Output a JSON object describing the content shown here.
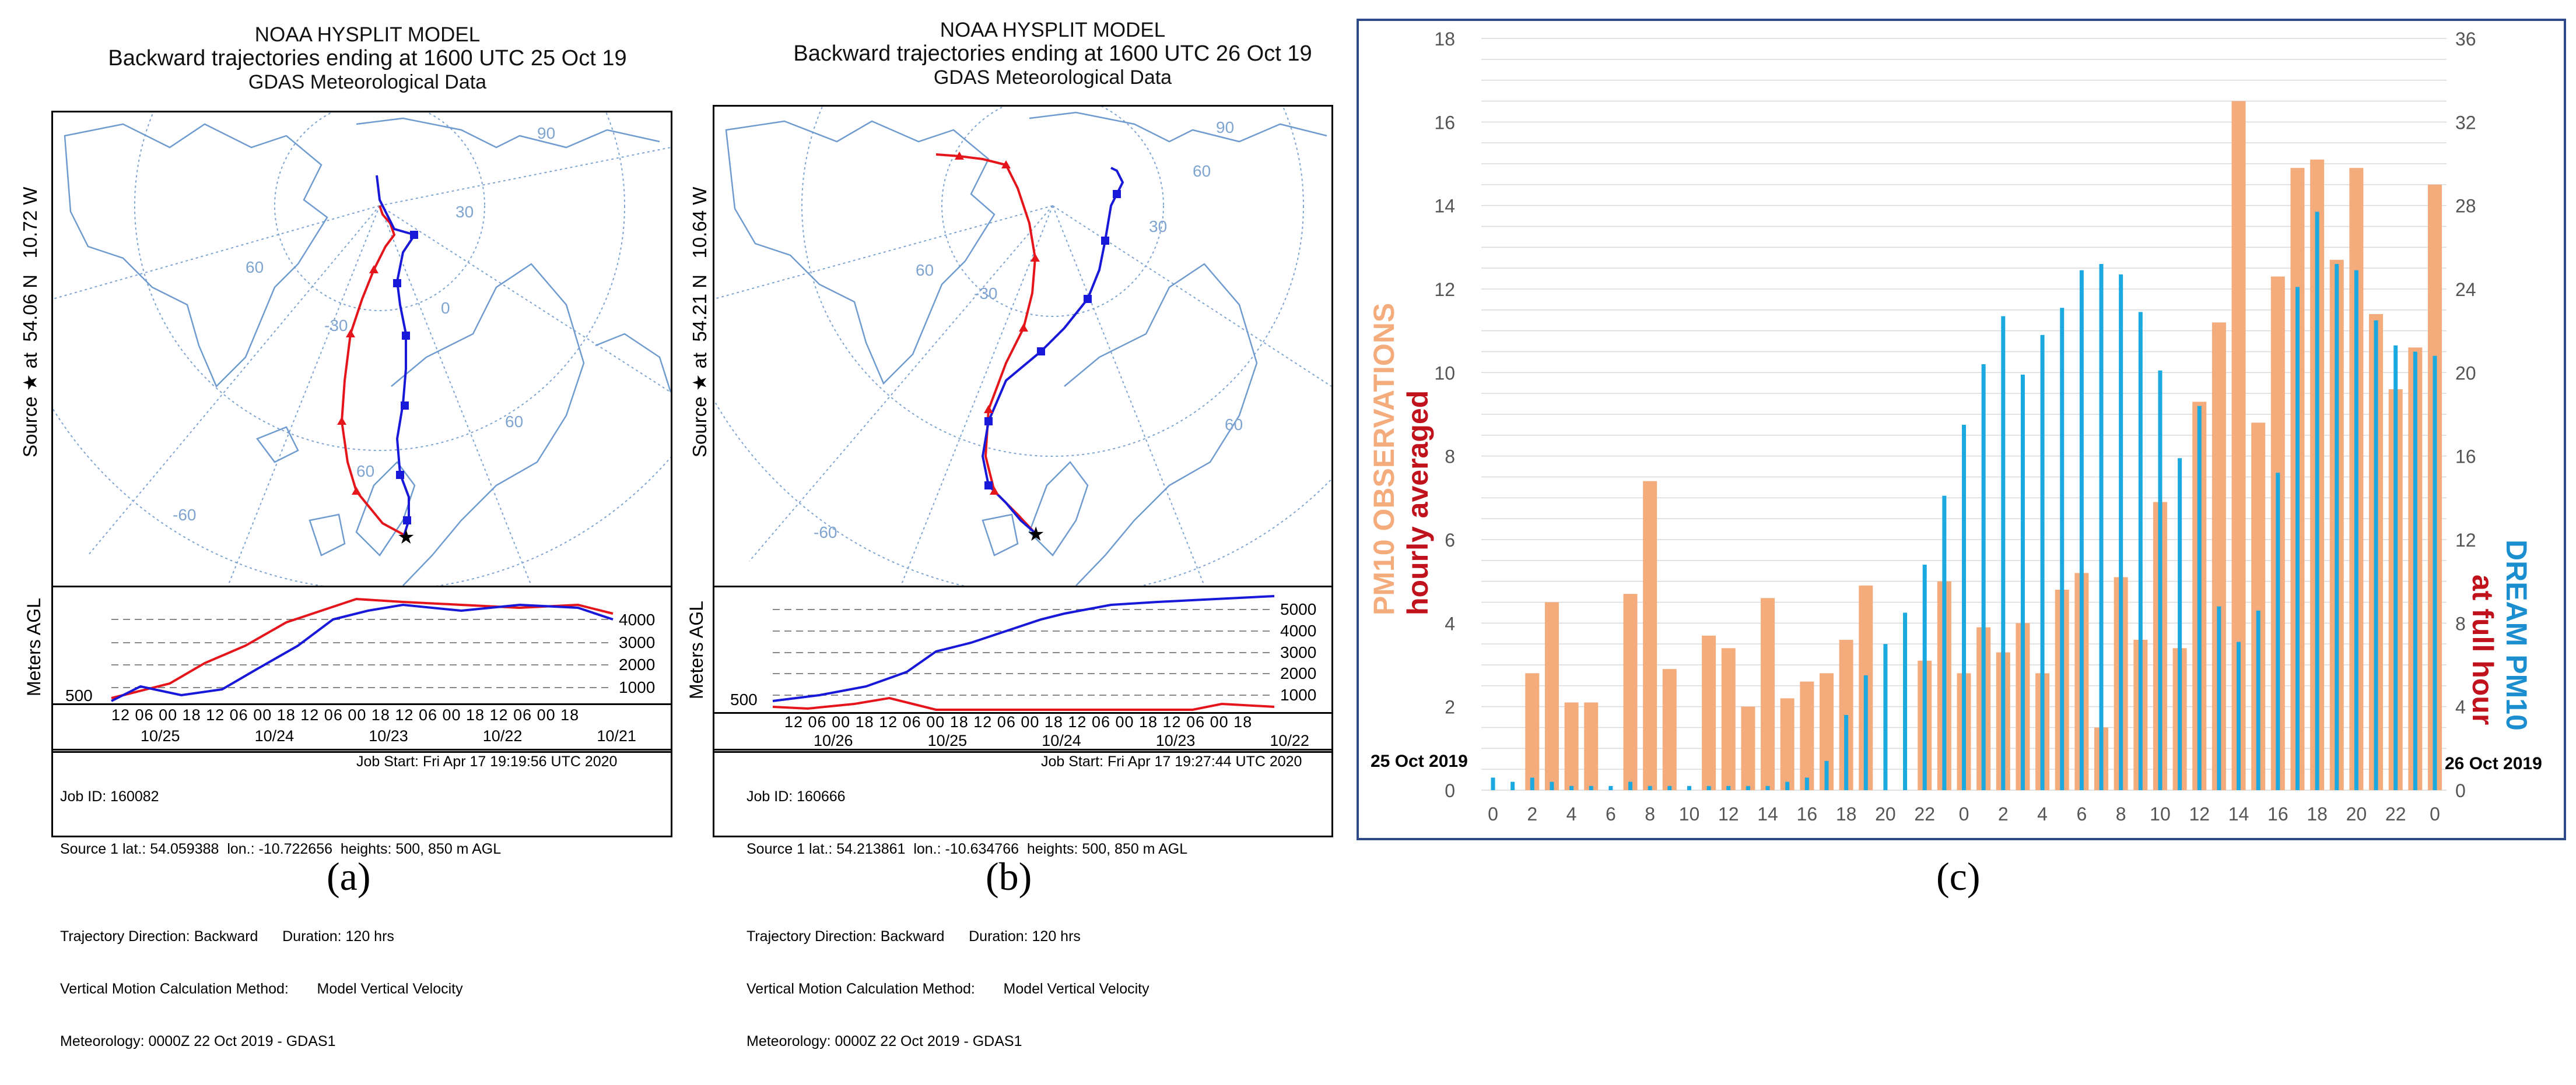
{
  "panel_a": {
    "title_line1": "NOAA HYSPLIT MODEL",
    "title_line2": "Backward trajectories ending at 1600 UTC 25 Oct 19",
    "title_line3": "GDAS Meteorological Data",
    "source_label": "Source ★ at",
    "lat": "54.06 N",
    "lon": "10.72 W",
    "ylabel": "Meters AGL",
    "height_ticks": [
      "4000",
      "3000",
      "2000",
      "1000"
    ],
    "start_level": "500",
    "time_ticks": "12 06 00 18 12 06 00 18 12 06 00 18 12 06 00 18 12 06 00 18",
    "date_ticks": [
      "10/25",
      "10/24",
      "10/23",
      "10/22",
      "10/21"
    ],
    "info_left": [
      "Job ID: 160082",
      "Source 1 lat.: 54.059388  lon.: -10.722656  heights: 500, 850 m AGL",
      "",
      "Trajectory Direction: Backward      Duration: 120 hrs",
      "Vertical Motion Calculation Method:       Model Vertical Velocity",
      "Meteorology: 0000Z 22 Oct 2019 - GDAS1"
    ],
    "job_start": "Job Start: Fri Apr 17 19:19:56 UTC 2020",
    "map_labels": [
      "90",
      "30",
      "60",
      "-30",
      "0",
      "60",
      "60",
      "-60"
    ],
    "caption": "(a)"
  },
  "panel_b": {
    "title_line1": "NOAA HYSPLIT MODEL",
    "title_line2": "Backward trajectories ending at 1600 UTC 26 Oct 19",
    "title_line3": "GDAS Meteorological Data",
    "source_label": "Source ★ at",
    "lat": "54.21 N",
    "lon": "10.64 W",
    "ylabel": "Meters AGL",
    "height_ticks": [
      "5000",
      "4000",
      "3000",
      "2000",
      "1000"
    ],
    "start_level": "500",
    "time_ticks": "12 06 00 18 12 06 00 18 12 06 00 18 12 06 00 18 12 06 00 18",
    "date_ticks": [
      "10/26",
      "10/25",
      "10/24",
      "10/23",
      "10/22"
    ],
    "info_left": [
      "Job ID: 160666",
      "Source 1 lat.: 54.213861  lon.: -10.634766  heights: 500, 850 m AGL",
      "",
      "Trajectory Direction: Backward      Duration: 120 hrs",
      "Vertical Motion Calculation Method:       Model Vertical Velocity",
      "Meteorology: 0000Z 22 Oct 2019 - GDAS1"
    ],
    "job_start": "Job Start: Fri Apr 17 19:27:44 UTC 2020",
    "map_labels": [
      "90",
      "30",
      "60",
      "-30",
      "60",
      "-60",
      "60"
    ],
    "caption": "(b)"
  },
  "chart_data": {
    "type": "bar",
    "title": "",
    "left_axis_title_line1": "PM10 OBSERVATIONS",
    "left_axis_title_line2": "hourly averaged",
    "right_axis_title_line1": "DREAM PM10",
    "right_axis_title_line2": "at full hour",
    "ylim": [
      0,
      18
    ],
    "y2lim": [
      0,
      36
    ],
    "y_ticks": [
      "0",
      "2",
      "4",
      "6",
      "8",
      "10",
      "12",
      "14",
      "16",
      "18"
    ],
    "y2_ticks": [
      "0",
      "4",
      "8",
      "12",
      "16",
      "20",
      "24",
      "28",
      "32",
      "36"
    ],
    "x_tick_labels": [
      "0",
      "2",
      "4",
      "6",
      "8",
      "10",
      "12",
      "14",
      "16",
      "18",
      "20",
      "22",
      "0",
      "2",
      "4",
      "6",
      "8",
      "10",
      "12",
      "14",
      "16",
      "18",
      "20",
      "22",
      "0"
    ],
    "start_label": "25 Oct 2019",
    "end_label": "26 Oct 2019",
    "colors": {
      "observations": "#f4ac7c",
      "dream": "#1ba9df"
    },
    "series": [
      {
        "name": "PM10 observations (hourly averaged)",
        "axis": "left",
        "values": [
          0,
          0,
          2.8,
          4.5,
          2.1,
          2.1,
          0,
          4.7,
          7.4,
          2.9,
          0,
          3.7,
          3.4,
          2.0,
          4.6,
          2.2,
          2.6,
          2.8,
          3.6,
          4.9,
          0,
          0,
          3.1,
          5.0,
          2.8,
          3.9,
          3.3,
          4.0,
          2.8,
          4.8,
          5.2,
          1.5,
          5.1,
          3.6,
          6.9,
          3.4,
          9.3,
          11.2,
          16.5,
          8.8,
          12.3,
          14.9,
          15.1,
          12.7,
          14.9,
          11.4,
          9.6,
          10.6,
          14.5
        ]
      },
      {
        "name": "DREAM PM10 (at full hour)",
        "axis": "right",
        "values": [
          0.6,
          0.4,
          0.6,
          0.4,
          0.2,
          0.2,
          0.2,
          0.4,
          0.2,
          0.2,
          0.2,
          0.2,
          0.2,
          0.2,
          0.2,
          0.4,
          0.6,
          1.4,
          3.6,
          5.5,
          7.0,
          8.5,
          10.8,
          14.1,
          17.5,
          20.4,
          22.7,
          19.9,
          21.8,
          23.1,
          24.9,
          25.2,
          24.7,
          22.9,
          20.1,
          15.9,
          18.4,
          8.8,
          7.1,
          8.6,
          15.2,
          24.1,
          27.7,
          25.2,
          24.9,
          22.5,
          21.3,
          21.0,
          20.8
        ]
      }
    ]
  },
  "caption_c": "(c)"
}
